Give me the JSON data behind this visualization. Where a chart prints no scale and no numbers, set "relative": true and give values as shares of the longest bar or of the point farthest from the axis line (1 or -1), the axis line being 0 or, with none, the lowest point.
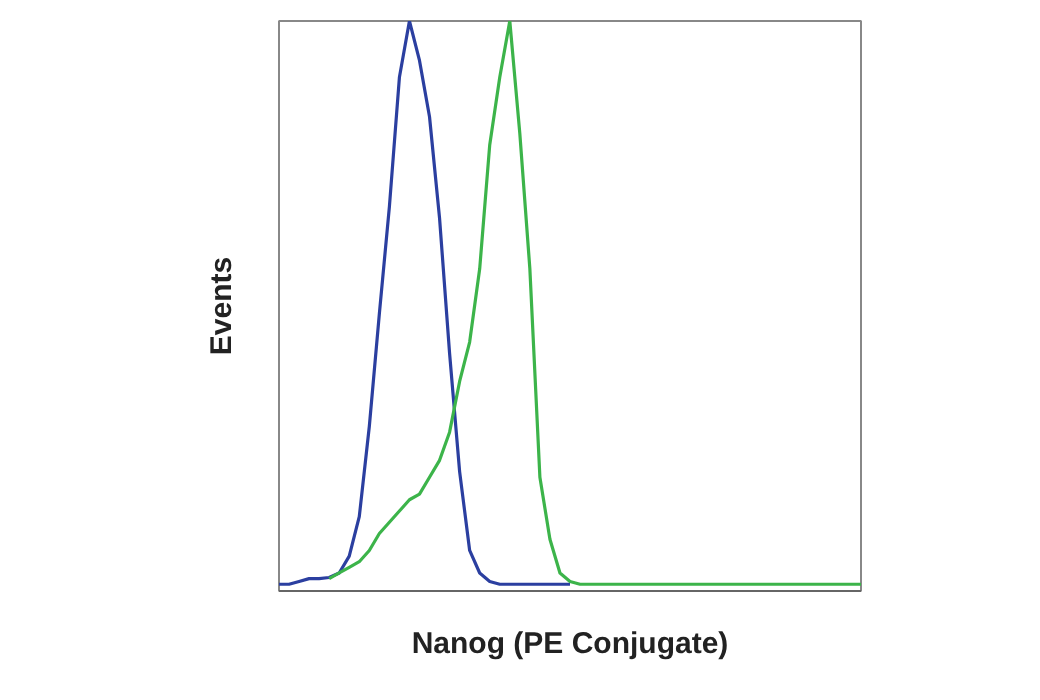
{
  "chart_data": {
    "type": "line",
    "relative": true,
    "xlabel": "Nanog (PE Conjugate)",
    "ylabel": "Events",
    "categories": [
      null,
      null,
      null,
      null,
      null,
      null,
      null,
      null,
      null,
      null,
      null,
      null,
      null,
      null,
      null,
      null,
      null,
      null,
      null,
      null,
      null,
      null,
      null,
      null,
      null,
      null,
      null,
      null,
      null,
      null,
      null,
      null,
      null,
      null,
      null,
      null,
      null,
      null,
      null,
      null,
      null,
      null,
      null,
      null,
      null,
      null,
      null,
      null,
      null,
      null,
      null,
      null,
      null,
      null,
      null,
      null,
      null,
      null,
      null
    ],
    "series": [
      {
        "color": "#2b3fa0",
        "values": [
          0,
          0,
          0.005,
          0.01,
          0.01,
          0.012,
          0.02,
          0.05,
          0.12,
          0.28,
          0.48,
          0.67,
          0.9,
          1,
          0.93,
          0.83,
          0.65,
          0.41,
          0.2,
          0.06,
          0.02,
          0.005,
          0,
          0,
          0,
          0,
          0,
          0,
          0,
          0,
          null,
          null,
          null,
          null,
          null,
          null,
          null,
          null,
          null,
          null,
          null,
          null,
          null,
          null,
          null,
          null,
          null,
          null,
          null,
          null,
          null,
          null,
          null,
          null,
          null,
          null,
          null,
          null,
          null
        ]
      },
      {
        "color": "#3cb44a",
        "values": [
          null,
          null,
          null,
          null,
          null,
          0.01,
          0.02,
          0.03,
          0.04,
          0.06,
          0.09,
          0.11,
          0.13,
          0.15,
          0.16,
          0.19,
          0.22,
          0.27,
          0.36,
          0.43,
          0.56,
          0.78,
          0.9,
          1,
          0.8,
          0.56,
          0.19,
          0.08,
          0.02,
          0.005,
          0,
          0,
          0,
          0,
          0,
          0,
          0,
          0,
          0,
          0,
          0,
          0,
          0,
          0,
          0,
          0,
          0,
          0,
          0,
          0,
          0,
          0,
          0,
          0,
          0,
          0,
          0,
          0,
          0
        ]
      }
    ]
  }
}
